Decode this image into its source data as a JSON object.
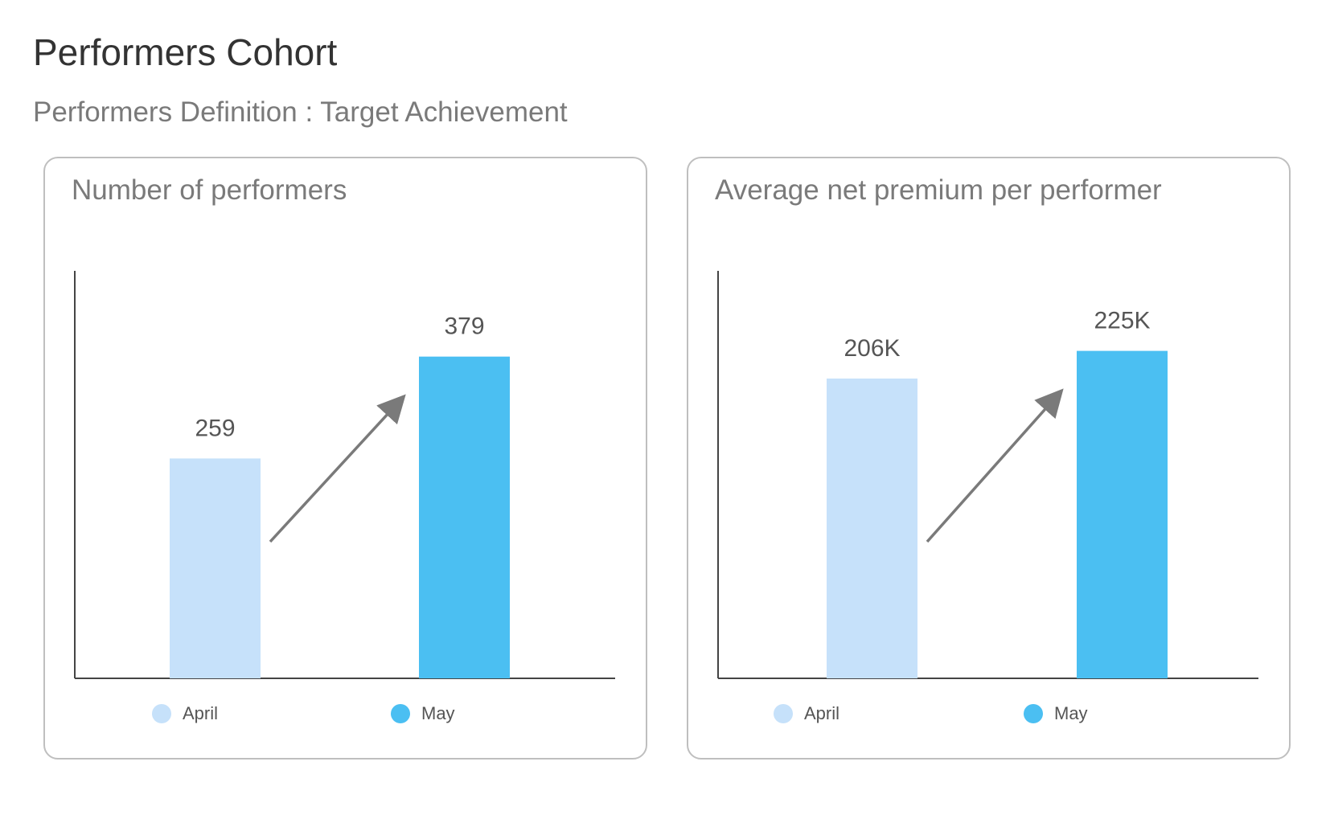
{
  "header": {
    "title": "Performers Cohort",
    "subtitle": "Performers Definition : Target Achievement"
  },
  "colors": {
    "april": "#c6e1fa",
    "may": "#4bbff2",
    "axis": "#444444",
    "arrow": "#7a7a7a",
    "value_label": "#555555"
  },
  "chart_data": [
    {
      "type": "bar",
      "title": "Number of performers",
      "categories": [
        "April",
        "May"
      ],
      "values": [
        259,
        379
      ],
      "value_labels": [
        "259",
        "379"
      ],
      "ylim": [
        0,
        480
      ],
      "legend": [
        {
          "label": "April",
          "color": "#c6e1fa"
        },
        {
          "label": "May",
          "color": "#4bbff2"
        }
      ],
      "legend_position": "bottom",
      "grid": false,
      "annotation": "upward arrow from April to May"
    },
    {
      "type": "bar",
      "title": "Average net premium per performer",
      "categories": [
        "April",
        "May"
      ],
      "values": [
        206000,
        225000
      ],
      "value_labels": [
        "206K",
        "225K"
      ],
      "ylim": [
        0,
        280000
      ],
      "legend": [
        {
          "label": "April",
          "color": "#c6e1fa"
        },
        {
          "label": "May",
          "color": "#4bbff2"
        }
      ],
      "legend_position": "bottom",
      "grid": false,
      "annotation": "upward arrow from April to May"
    }
  ]
}
